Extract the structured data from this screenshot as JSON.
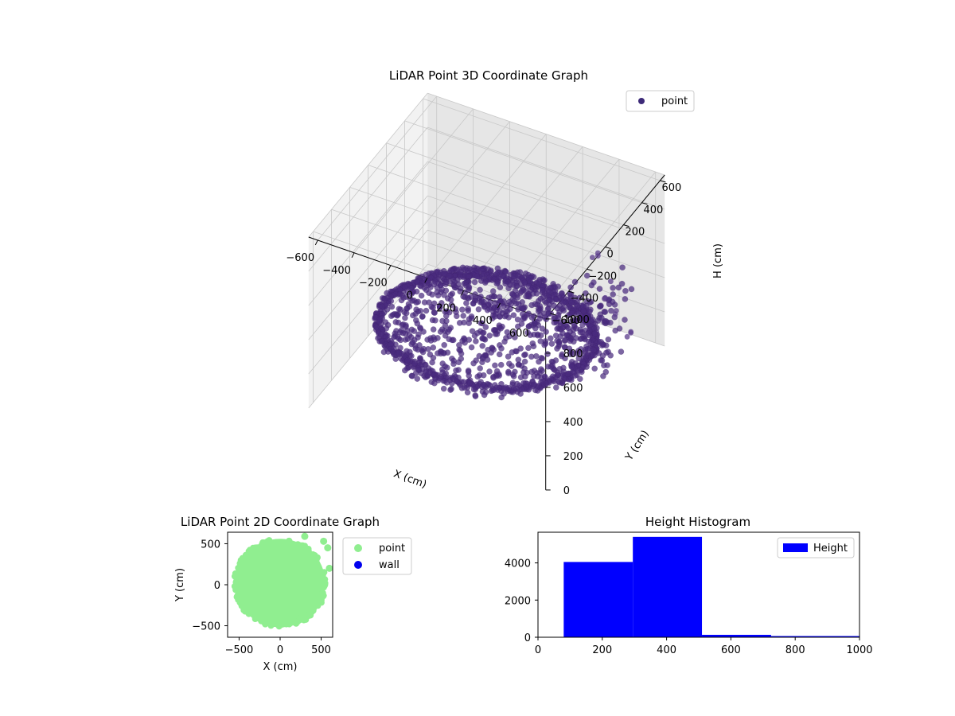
{
  "chart_data": [
    {
      "type": "scatter",
      "projection": "3d",
      "title": "LiDAR Point 3D Coordinate Graph",
      "xlabel": "X (cm)",
      "ylabel": "Y (cm)",
      "zlabel": "H (cm)",
      "x_ticks": [
        "−600",
        "−400",
        "−200",
        "0",
        "200",
        "400",
        "600"
      ],
      "y_ticks": [
        "−600",
        "−400",
        "−200",
        "0",
        "200",
        "400",
        "600"
      ],
      "z_ticks": [
        "0",
        "200",
        "400",
        "600",
        "800",
        "1000"
      ],
      "xlim": [
        -650,
        650
      ],
      "ylim": [
        -650,
        650
      ],
      "zlim": [
        0,
        1000
      ],
      "z_inverted": true,
      "grid": true,
      "legend": {
        "entries": [
          {
            "label": "point",
            "color": "#3d2a78"
          }
        ],
        "placement": "top-right"
      },
      "series": [
        {
          "name": "point",
          "color": "#472c7a",
          "shape": "inverted dome of points; rim near H≈150–250, bottom near H≈550–650, radius ≈ 550 cm",
          "outliers": [
            {
              "x": 560,
              "y": 420,
              "h": 170
            },
            {
              "x": 600,
              "y": 380,
              "h": 240
            },
            {
              "x": 640,
              "y": 300,
              "h": 300
            },
            {
              "x": 580,
              "y": 250,
              "h": 420
            },
            {
              "x": 620,
              "y": 180,
              "h": 500
            },
            {
              "x": 600,
              "y": 100,
              "h": 620
            },
            {
              "x": 650,
              "y": 60,
              "h": 760
            },
            {
              "x": 560,
              "y": 40,
              "h": 880
            },
            {
              "x": 620,
              "y": -20,
              "h": 950
            },
            {
              "x": 640,
              "y": -60,
              "h": 1000
            }
          ]
        }
      ]
    },
    {
      "type": "scatter",
      "title": "LiDAR Point 2D Coordinate Graph",
      "xlabel": "X (cm)",
      "ylabel": "Y (cm)",
      "x_ticks": [
        "−500",
        "0",
        "500"
      ],
      "y_ticks": [
        "500",
        "0",
        "−500"
      ],
      "xlim": [
        -640,
        640
      ],
      "ylim": [
        -640,
        640
      ],
      "legend": {
        "entries": [
          {
            "label": "point",
            "color": "#90ee90"
          },
          {
            "label": "wall",
            "color": "#0000ee"
          }
        ],
        "placement": "outside-right"
      },
      "series": [
        {
          "name": "point",
          "color": "#90ee90",
          "shape": "filled disc approx. x −550..550, y −520..560",
          "outliers": [
            {
              "x": 300,
              "y": 590
            },
            {
              "x": 530,
              "y": 530
            },
            {
              "x": 580,
              "y": 450
            },
            {
              "x": 600,
              "y": 200
            }
          ]
        },
        {
          "name": "wall",
          "color": "#0000ee",
          "points": []
        }
      ]
    },
    {
      "type": "bar",
      "subtype": "histogram",
      "title": "Height Histogram",
      "xlabel": "",
      "ylabel": "",
      "x_ticks": [
        "0",
        "200",
        "400",
        "600",
        "800",
        "1000"
      ],
      "y_ticks": [
        "0",
        "2000",
        "4000"
      ],
      "xlim": [
        0,
        1000
      ],
      "ylim": [
        0,
        5650
      ],
      "legend": {
        "entries": [
          {
            "label": "Height",
            "color": "#0000ff"
          }
        ],
        "placement": "top-right"
      },
      "series": [
        {
          "name": "Height",
          "color": "#0000ff",
          "bins": [
            {
              "from": 80,
              "to": 295,
              "count": 4050
            },
            {
              "from": 295,
              "to": 510,
              "count": 5400
            },
            {
              "from": 510,
              "to": 725,
              "count": 130
            },
            {
              "from": 725,
              "to": 1000,
              "count": 40
            }
          ]
        }
      ]
    }
  ]
}
